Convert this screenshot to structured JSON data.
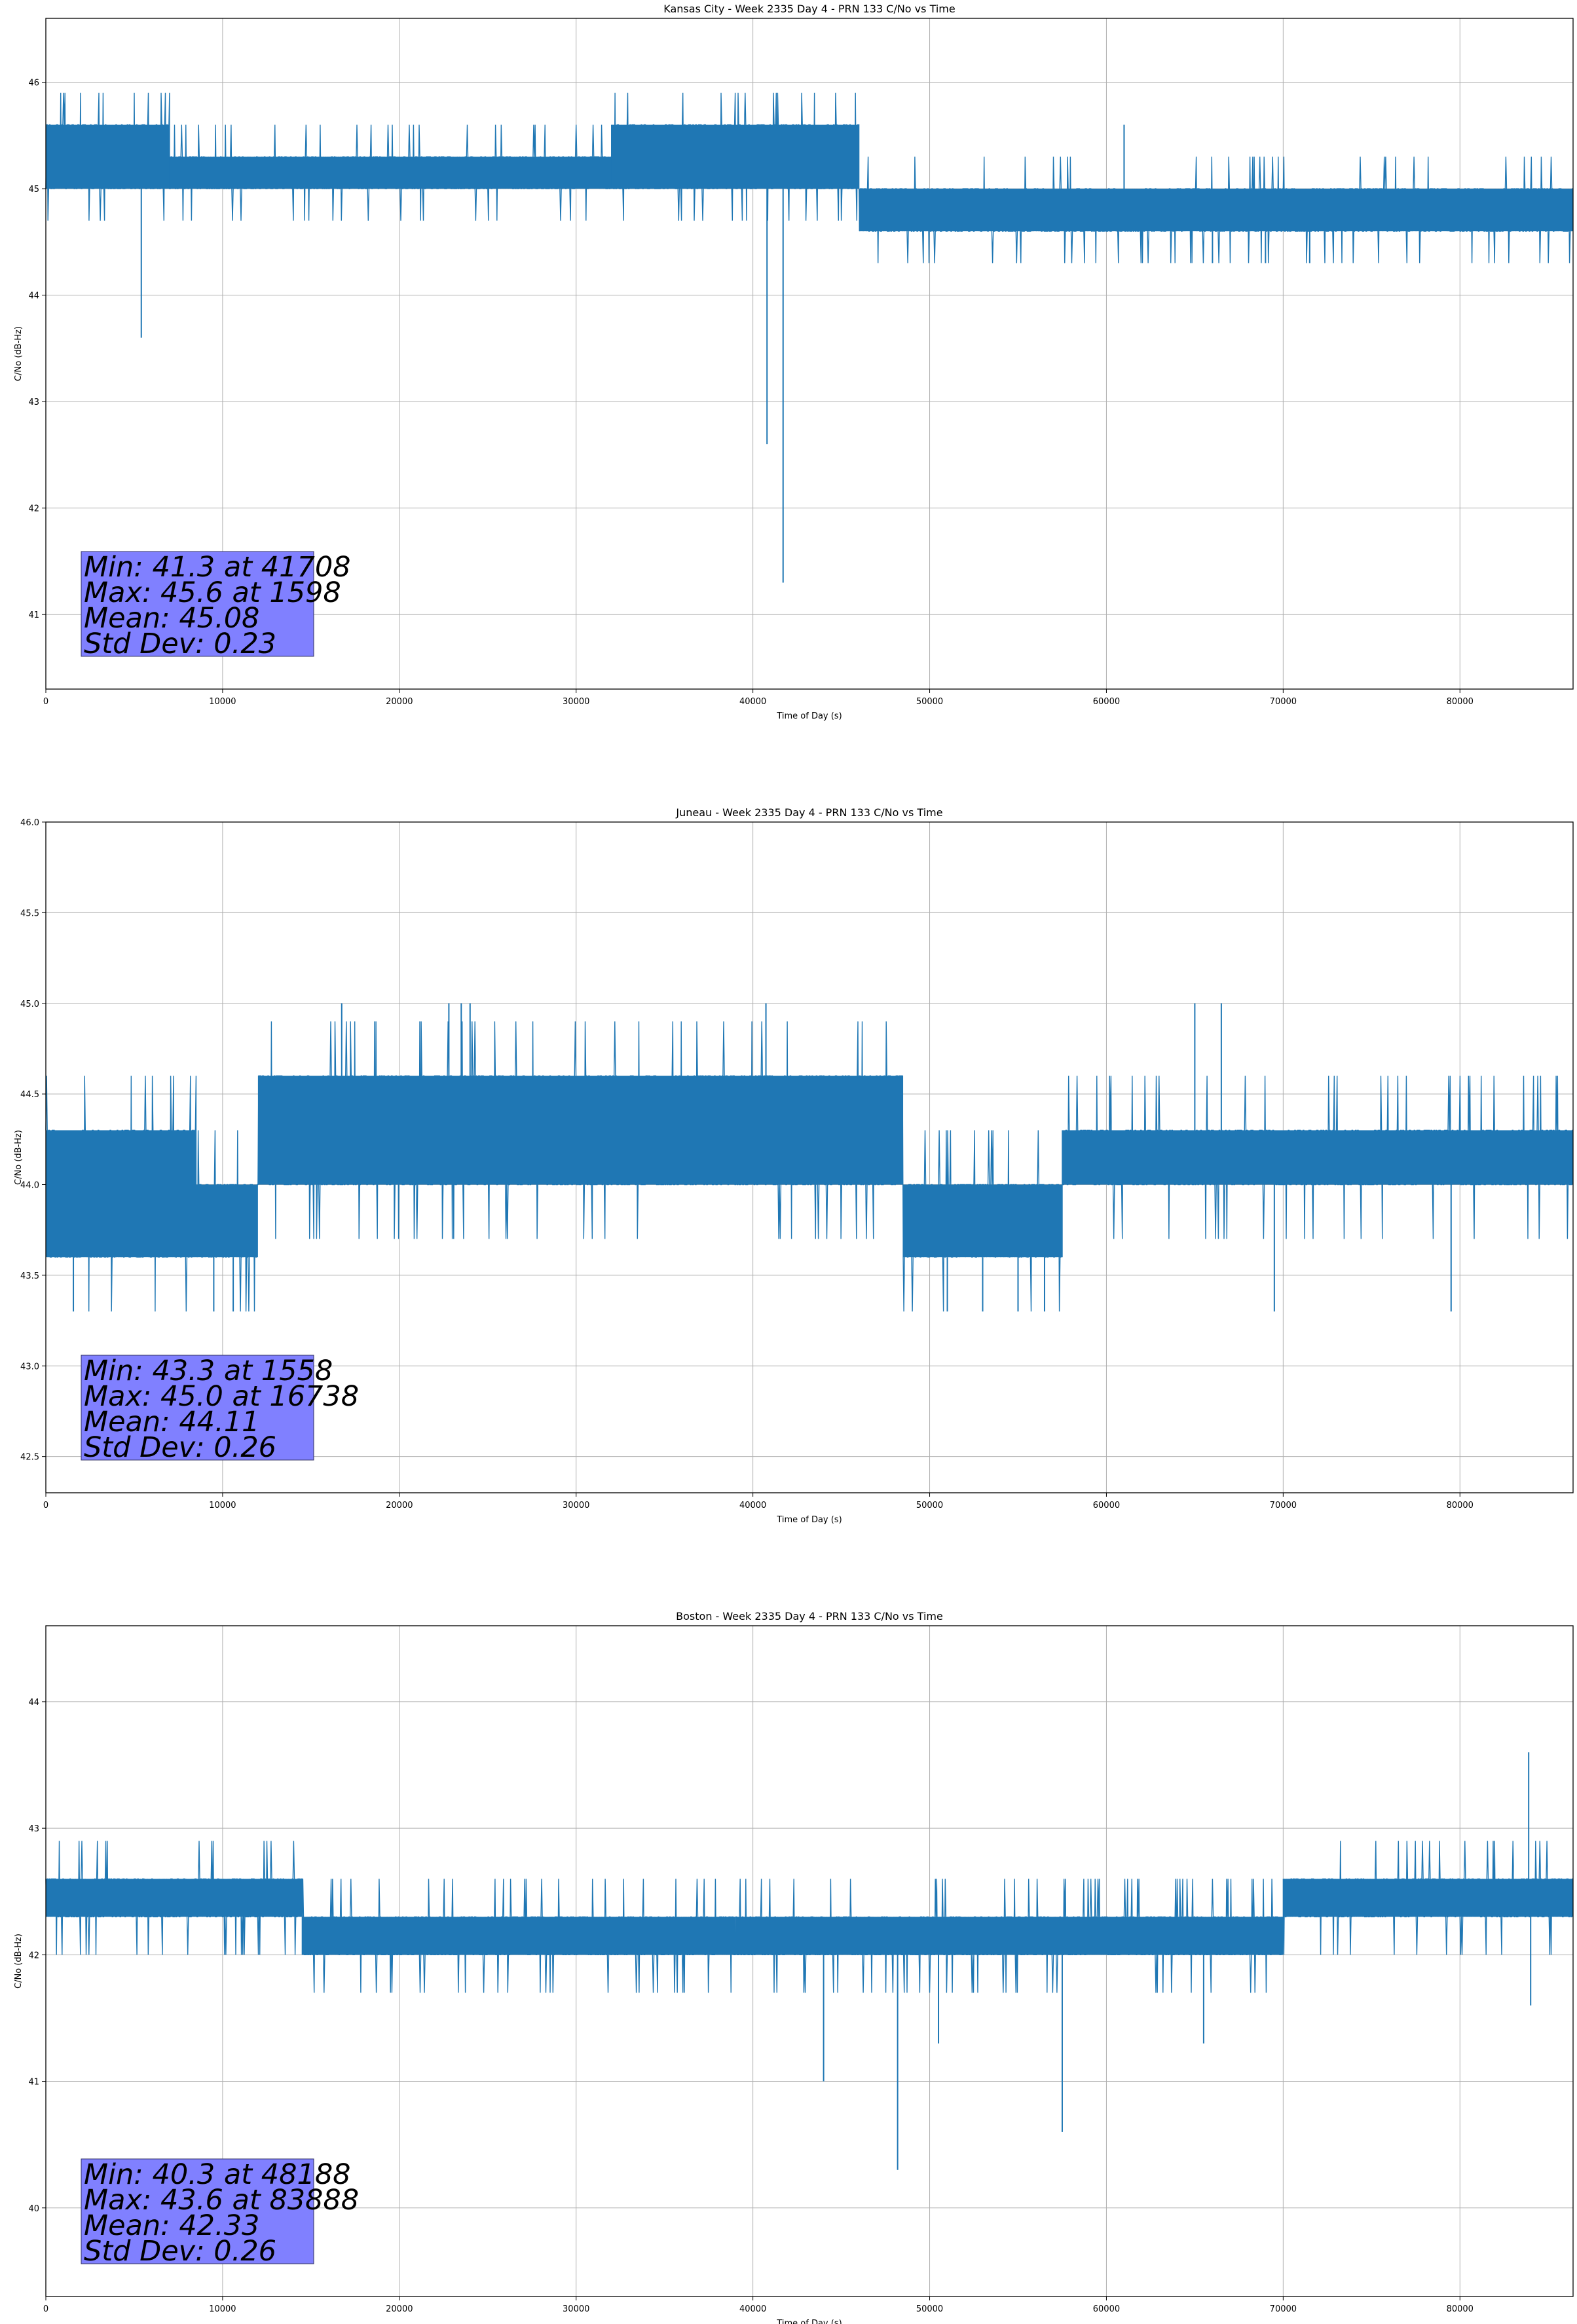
{
  "chart_data": [
    {
      "type": "line",
      "title": "Kansas City - Week 2335 Day 4 - PRN 133 C/No vs Time",
      "xlabel": "Time of Day (s)",
      "ylabel": "C/No (dB-Hz)",
      "xlim": [
        0,
        86400
      ],
      "ylim": [
        40.3,
        46.6
      ],
      "xticks": [
        0,
        10000,
        20000,
        30000,
        40000,
        50000,
        60000,
        70000,
        80000
      ],
      "yticks": [
        41,
        42,
        43,
        44,
        45,
        46
      ],
      "grid": true,
      "color": "#1f77b4",
      "stats": [
        "Min: 41.3 at 41708",
        "Max: 45.6 at 1598",
        "Mean: 45.08",
        "Std Dev: 0.23"
      ],
      "segments": [
        {
          "x": [
            0,
            7000
          ],
          "band": [
            45.0,
            45.6
          ]
        },
        {
          "x": [
            7000,
            32000
          ],
          "band": [
            45.0,
            45.3
          ]
        },
        {
          "x": [
            32000,
            46000
          ],
          "band": [
            45.0,
            45.6
          ]
        },
        {
          "x": [
            46000,
            86400
          ],
          "band": [
            44.6,
            45.0
          ]
        }
      ],
      "spikes": [
        [
          5400,
          43.6
        ],
        [
          40800,
          42.6
        ],
        [
          41708,
          41.3
        ],
        [
          61000,
          45.6
        ],
        [
          66000,
          44.3
        ],
        [
          69000,
          44.3
        ],
        [
          71500,
          44.3
        ]
      ]
    },
    {
      "type": "line",
      "title": "Juneau - Week 2335 Day 4 - PRN 133 C/No vs Time",
      "xlabel": "Time of Day (s)",
      "ylabel": "C/No (dB-Hz)",
      "xlim": [
        0,
        86400
      ],
      "ylim": [
        42.3,
        46.0
      ],
      "xticks": [
        0,
        10000,
        20000,
        30000,
        40000,
        50000,
        60000,
        70000,
        80000
      ],
      "yticks": [
        42.5,
        43.0,
        43.5,
        44.0,
        44.5,
        45.0,
        45.5,
        46.0
      ],
      "grid": true,
      "color": "#1f77b4",
      "stats": [
        "Min: 43.3 at 1558",
        "Max: 45.0 at 16738",
        "Mean: 44.11",
        "Std Dev: 0.26"
      ],
      "segments": [
        {
          "x": [
            0,
            8500
          ],
          "band": [
            43.6,
            44.3
          ]
        },
        {
          "x": [
            8500,
            12000
          ],
          "band": [
            43.6,
            44.0
          ]
        },
        {
          "x": [
            12000,
            48500
          ],
          "band": [
            44.0,
            44.6
          ]
        },
        {
          "x": [
            48500,
            57500
          ],
          "band": [
            43.6,
            44.0
          ]
        },
        {
          "x": [
            57500,
            86400
          ],
          "band": [
            44.0,
            44.3
          ]
        }
      ],
      "spikes": [
        [
          1558,
          43.3
        ],
        [
          9500,
          43.3
        ],
        [
          10600,
          43.3
        ],
        [
          16738,
          45.0
        ],
        [
          22800,
          45.0
        ],
        [
          23500,
          45.0
        ],
        [
          24000,
          45.0
        ],
        [
          40738,
          45.0
        ],
        [
          51000,
          43.3
        ],
        [
          53000,
          43.3
        ],
        [
          55000,
          43.3
        ],
        [
          56500,
          43.3
        ],
        [
          65000,
          45.0
        ],
        [
          66500,
          45.0
        ],
        [
          69500,
          43.3
        ],
        [
          79500,
          43.3
        ]
      ]
    },
    {
      "type": "line",
      "title": "Boston - Week 2335 Day 4 - PRN 133 C/No vs Time",
      "xlabel": "Time of Day (s)",
      "ylabel": "C/No (dB-Hz)",
      "xlim": [
        0,
        86400
      ],
      "ylim": [
        39.3,
        44.6
      ],
      "xticks": [
        0,
        10000,
        20000,
        30000,
        40000,
        50000,
        60000,
        70000,
        80000
      ],
      "yticks": [
        40,
        41,
        42,
        43,
        44
      ],
      "grid": true,
      "color": "#1f77b4",
      "stats": [
        "Min: 40.3 at 48188",
        "Max: 43.6 at 83888",
        "Mean: 42.33",
        "Std Dev: 0.26"
      ],
      "segments": [
        {
          "x": [
            0,
            14500
          ],
          "band": [
            42.3,
            42.6
          ]
        },
        {
          "x": [
            14500,
            39000
          ],
          "band": [
            42.0,
            42.3
          ]
        },
        {
          "x": [
            39000,
            70000
          ],
          "band": [
            42.0,
            42.3
          ]
        },
        {
          "x": [
            70000,
            86400
          ],
          "band": [
            42.3,
            42.6
          ]
        }
      ],
      "spikes": [
        [
          44000,
          41.0
        ],
        [
          48188,
          40.3
        ],
        [
          50500,
          41.3
        ],
        [
          57500,
          40.6
        ],
        [
          65500,
          41.3
        ],
        [
          83888,
          43.6
        ],
        [
          84000,
          41.6
        ]
      ]
    }
  ]
}
